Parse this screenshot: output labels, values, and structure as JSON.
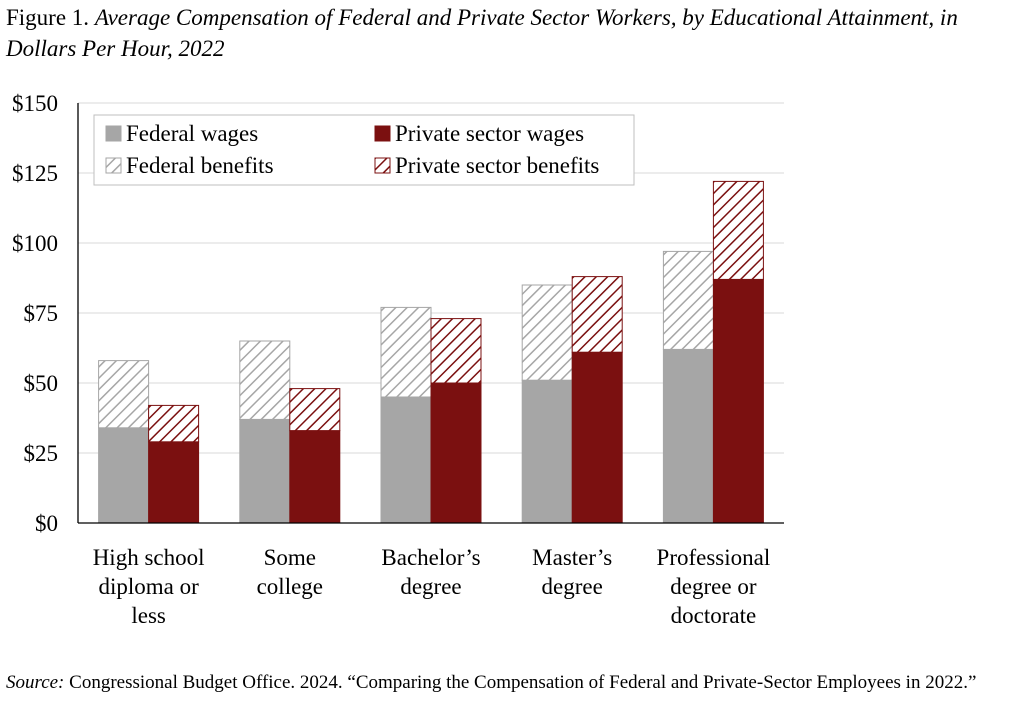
{
  "figure": {
    "label": "Figure 1.",
    "title": "Average Compensation of Federal and Private Sector Workers, by Educational Attainment, in Dollars Per Hour, 2022"
  },
  "source": {
    "label": "Source:",
    "text": "Congressional Budget Office. 2024. “Comparing the Compensation of Federal and Private-Sector Employees in 2022.”"
  },
  "colors": {
    "federal": "#a6a6a6",
    "private": "#7b1010",
    "gridline": "#d9d9d9"
  },
  "chart_data": {
    "type": "bar",
    "stacked": true,
    "categories": [
      [
        "High school",
        "diploma or",
        "less"
      ],
      [
        "Some",
        "college"
      ],
      [
        "Bachelor’s",
        "degree"
      ],
      [
        "Master’s",
        "degree"
      ],
      [
        "Professional",
        "degree or",
        "doctorate"
      ]
    ],
    "series": [
      {
        "name": "Federal wages",
        "group": "federal",
        "part": "wages",
        "values": [
          34,
          37,
          45,
          51,
          62
        ]
      },
      {
        "name": "Federal benefits",
        "group": "federal",
        "part": "benefits",
        "values": [
          24,
          28,
          32,
          34,
          35
        ]
      },
      {
        "name": "Private sector wages",
        "group": "private",
        "part": "wages",
        "values": [
          29,
          33,
          50,
          61,
          87
        ]
      },
      {
        "name": "Private sector benefits",
        "group": "private",
        "part": "benefits",
        "values": [
          13,
          15,
          23,
          27,
          35
        ]
      }
    ],
    "yticks": [
      "$0",
      "$25",
      "$50",
      "$75",
      "$100",
      "$125",
      "$150"
    ],
    "ytick_values": [
      0,
      25,
      50,
      75,
      100,
      125,
      150
    ],
    "ylim": [
      0,
      150
    ],
    "grid": true,
    "legend": {
      "placement": "top-left",
      "rows": [
        [
          "Federal wages",
          "Private sector wages"
        ],
        [
          "Federal benefits",
          "Private sector benefits"
        ]
      ]
    }
  }
}
